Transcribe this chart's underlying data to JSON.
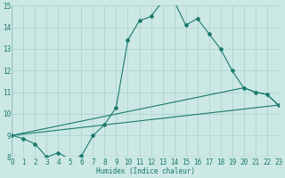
{
  "xlabel": "Humidex (Indice chaleur)",
  "xlim": [
    0,
    23
  ],
  "ylim": [
    8,
    15
  ],
  "yticks": [
    8,
    9,
    10,
    11,
    12,
    13,
    14,
    15
  ],
  "xticks": [
    0,
    1,
    2,
    3,
    4,
    5,
    6,
    7,
    8,
    9,
    10,
    11,
    12,
    13,
    14,
    15,
    16,
    17,
    18,
    19,
    20,
    21,
    22,
    23
  ],
  "bg_color": "#cce8e4",
  "grid_color": "#aed4cf",
  "line_color": "#1a7a6e",
  "line1_x": [
    0,
    1,
    2,
    3,
    4,
    5,
    6,
    7,
    8,
    9,
    10,
    11,
    12,
    13,
    14,
    15,
    16,
    17,
    18,
    19,
    20,
    21,
    22,
    23
  ],
  "line1_y": [
    9.0,
    8.85,
    8.6,
    8.0,
    8.2,
    7.9,
    8.05,
    9.0,
    9.5,
    10.3,
    13.4,
    14.3,
    14.5,
    15.2,
    15.2,
    14.1,
    14.4,
    13.7,
    13.0,
    12.0,
    11.2,
    11.0,
    10.9,
    10.4
  ],
  "line2_x": [
    0,
    23
  ],
  "line2_y": [
    9.0,
    10.4
  ],
  "line3_x": [
    0,
    20,
    21,
    22,
    23
  ],
  "line3_y": [
    9.0,
    11.2,
    11.0,
    10.9,
    10.4
  ],
  "font_size": 5.5
}
